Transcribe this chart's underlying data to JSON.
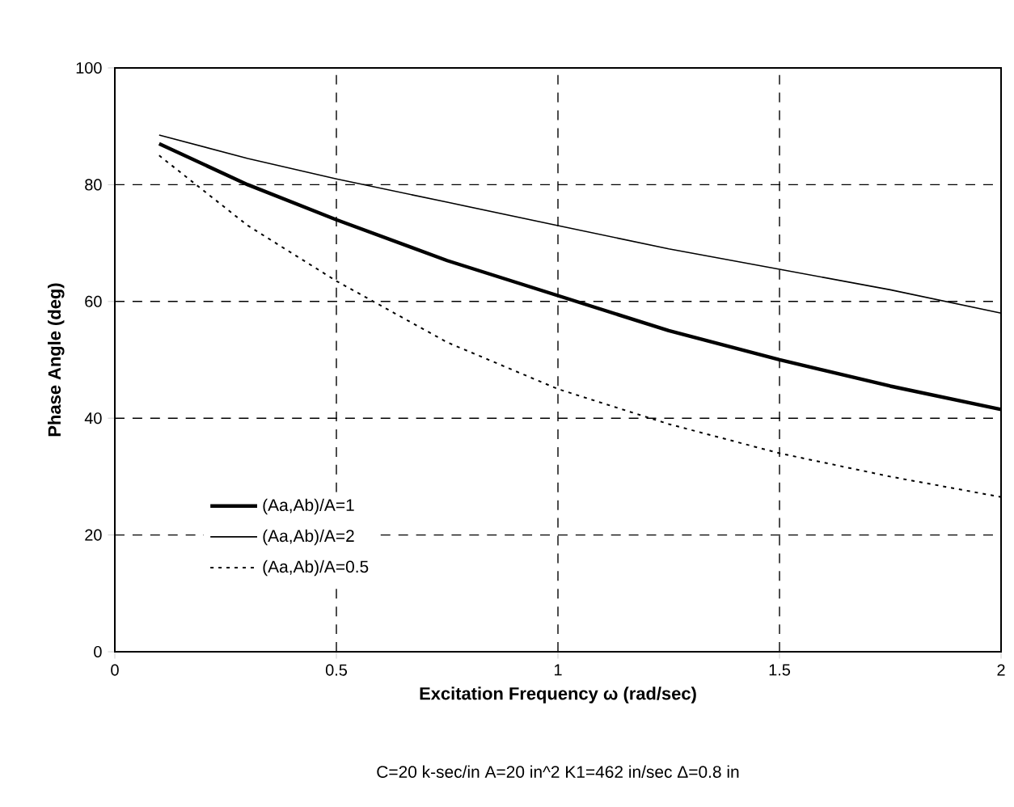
{
  "chart_data": {
    "type": "line",
    "xlabel": "Excitation Frequency ω (rad/sec)",
    "ylabel": "Phase Angle (deg)",
    "x": [
      0.1,
      0.3,
      0.5,
      0.75,
      1.0,
      1.25,
      1.5,
      1.75,
      2.0
    ],
    "series": [
      {
        "name": "(Aa,Ab)/A=1",
        "color": "#000000",
        "line_style": "solid",
        "values": [
          87,
          80,
          74,
          67,
          61,
          55,
          50,
          45.5,
          41.5
        ]
      },
      {
        "name": "(Aa,Ab)/A=2",
        "color": "#000000",
        "line_style": "solid",
        "values": [
          88.5,
          84.5,
          81,
          77,
          73,
          69,
          65.5,
          62,
          58
        ]
      },
      {
        "name": "(Aa,Ab)/A=0.5",
        "color": "#000000",
        "line_style": "dotted",
        "values": [
          85,
          73,
          63.5,
          53,
          45,
          39,
          34,
          30,
          26.5
        ]
      }
    ],
    "xlim": [
      0,
      2
    ],
    "ylim": [
      0,
      100
    ],
    "xticks": [
      0,
      0.5,
      1,
      1.5,
      2
    ],
    "yticks": [
      0,
      20,
      40,
      60,
      80,
      100
    ],
    "grid": true,
    "legend": "bottom left",
    "marker": "none",
    "annotations": [
      "C=20 k-sec/in   A=20 in^2   K1=462 in/sec Δ=0.8 in"
    ]
  }
}
